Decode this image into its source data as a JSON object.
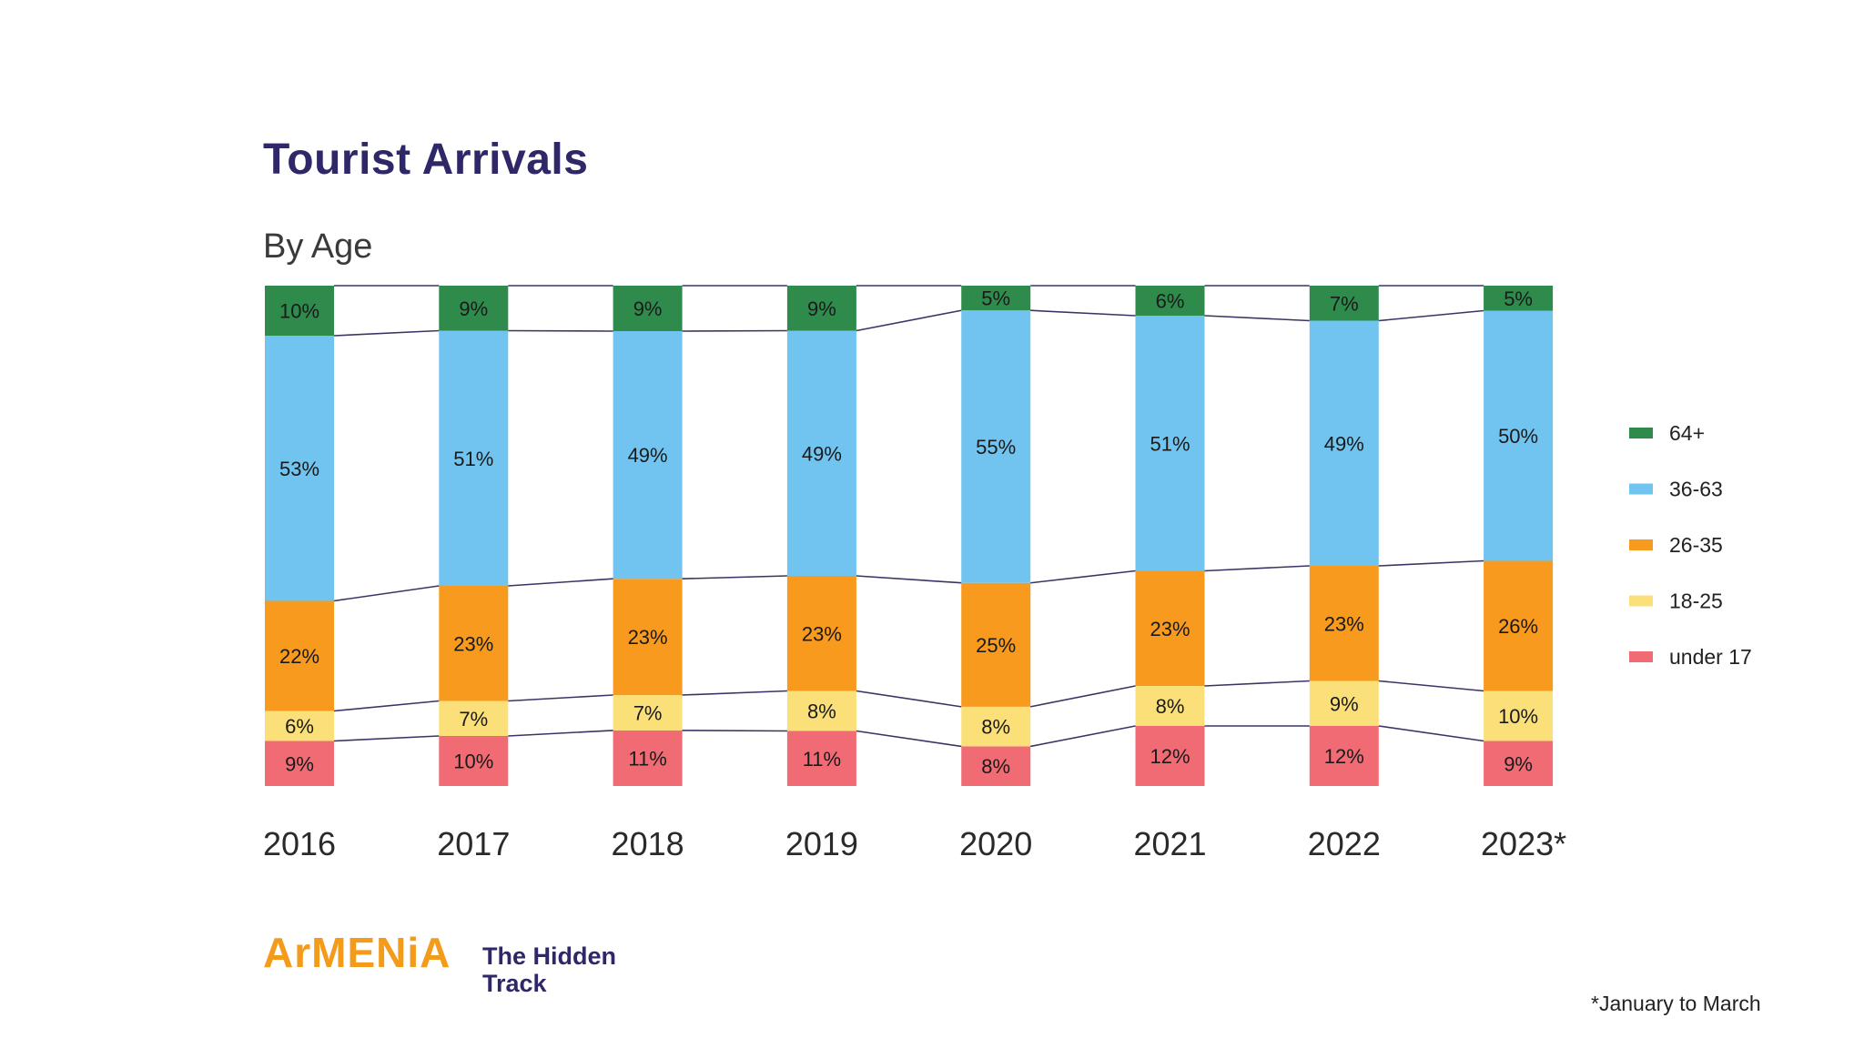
{
  "title": "Tourist Arrivals",
  "subtitle": "By Age",
  "brand": {
    "name": "ArMENiA",
    "tagline_line1": "The Hidden",
    "tagline_line2": "Track"
  },
  "footnote": "*January to March",
  "chart_data": {
    "type": "bar",
    "stacked": true,
    "orientation": "vertical",
    "categories": [
      "2016",
      "2017",
      "2018",
      "2019",
      "2020",
      "2021",
      "2022",
      "2023*"
    ],
    "series": [
      {
        "name": "under 17",
        "color": "#f06b74",
        "values": [
          9,
          10,
          11,
          11,
          8,
          12,
          12,
          9
        ]
      },
      {
        "name": "18-25",
        "color": "#fbe07a",
        "values": [
          6,
          7,
          7,
          8,
          8,
          8,
          9,
          10
        ]
      },
      {
        "name": "26-35",
        "color": "#f79a1e",
        "values": [
          22,
          23,
          23,
          23,
          25,
          23,
          23,
          26
        ]
      },
      {
        "name": "36-63",
        "color": "#71c4ef",
        "values": [
          53,
          51,
          49,
          49,
          55,
          51,
          49,
          50
        ]
      },
      {
        "name": "64+",
        "color": "#2e8b4b",
        "values": [
          10,
          9,
          9,
          9,
          5,
          6,
          7,
          5
        ]
      }
    ],
    "legend_order": [
      "64+",
      "36-63",
      "26-35",
      "18-25",
      "under 17"
    ],
    "legend_position": "right",
    "value_label_suffix": "%",
    "connector_lines": true,
    "grid": false
  }
}
